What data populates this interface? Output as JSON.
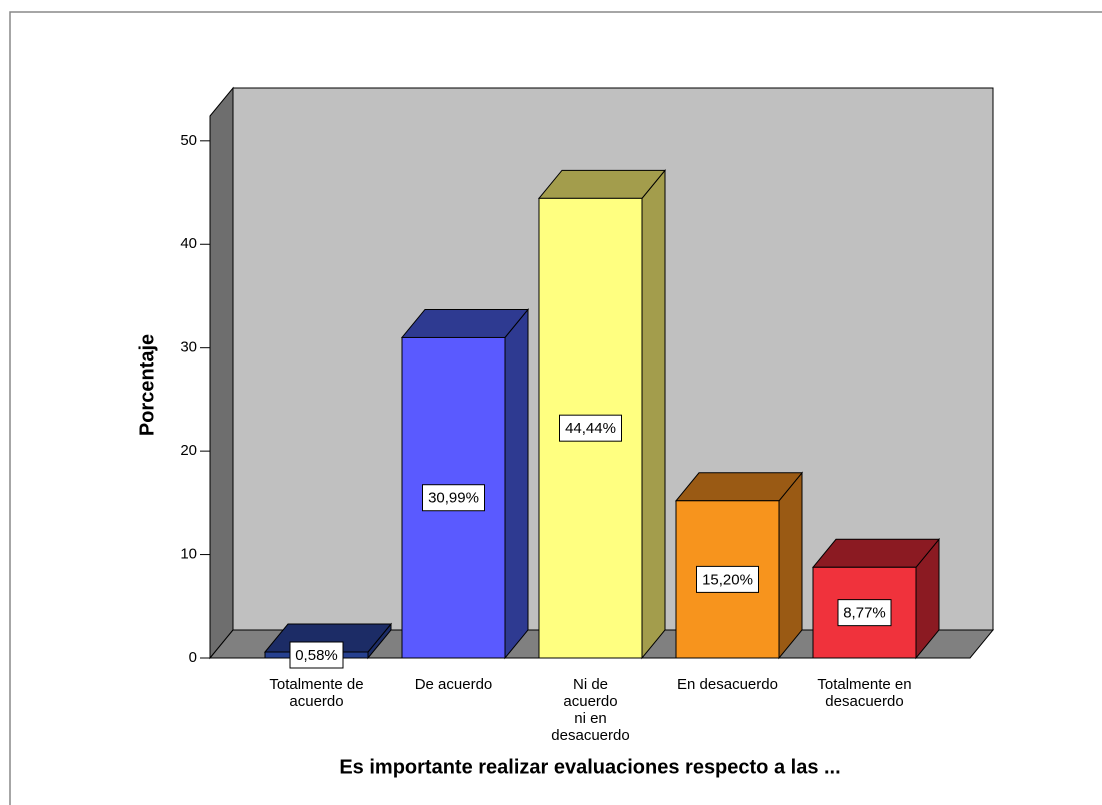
{
  "chart_data": {
    "type": "bar3d",
    "xlabel": "Es importante realizar evaluaciones respecto a las ...",
    "ylabel": "Porcentaje",
    "categories": [
      "Totalmente de acuerdo",
      "De acuerdo",
      "Ni de acuerdo ni en desacuerdo",
      "En desacuerdo",
      "Totalmente en desacuerdo"
    ],
    "values": [
      0.58,
      30.99,
      44.44,
      15.2,
      8.77
    ],
    "value_labels": [
      "0,58%",
      "30,99%",
      "44,44%",
      "15,20%",
      "8,77%"
    ],
    "colors": [
      "#26408f",
      "#5a5aff",
      "#ffff80",
      "#f7941d",
      "#f0323c"
    ],
    "side_colors": [
      "#1c2c66",
      "#2e3a91",
      "#a39d4c",
      "#9a5a14",
      "#8b1a22"
    ],
    "ylim": [
      0,
      52.4
    ],
    "yticks": [
      0,
      10,
      20,
      30,
      40,
      50
    ]
  }
}
